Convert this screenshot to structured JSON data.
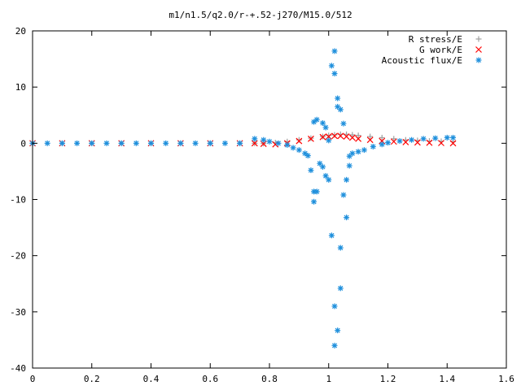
{
  "chart_data": {
    "type": "scatter",
    "title": "m1/n1.5/q2.0/r-+.52-j270/M15.0/512",
    "xlabel": "",
    "ylabel": "",
    "xlim": [
      0,
      1.6
    ],
    "ylim": [
      -40,
      20
    ],
    "x_ticks": [
      "0",
      "0.2",
      "0.4",
      "0.6",
      "0.8",
      "1",
      "1.2",
      "1.4",
      "1.6"
    ],
    "y_ticks": [
      "20",
      "10",
      "0",
      "-10",
      "-20",
      "-30",
      "-40"
    ],
    "grid": false,
    "legend_position": "top-right",
    "series": [
      {
        "name": "R stress/E",
        "marker": "plus",
        "color": "#a0a0a0",
        "points": [
          [
            0.0,
            0.0
          ],
          [
            0.1,
            0.0
          ],
          [
            0.2,
            0.0
          ],
          [
            0.3,
            0.0
          ],
          [
            0.4,
            0.0
          ],
          [
            0.5,
            0.0
          ],
          [
            0.6,
            0.0
          ],
          [
            0.7,
            0.0
          ],
          [
            0.75,
            0.0
          ],
          [
            0.78,
            -0.05
          ],
          [
            0.82,
            0.1
          ],
          [
            0.86,
            0.3
          ],
          [
            0.9,
            0.6
          ],
          [
            0.94,
            0.9
          ],
          [
            0.98,
            1.2
          ],
          [
            1.0,
            1.4
          ],
          [
            1.02,
            1.5
          ],
          [
            1.04,
            1.6
          ],
          [
            1.06,
            1.6
          ],
          [
            1.08,
            1.5
          ],
          [
            1.1,
            1.4
          ],
          [
            1.14,
            1.2
          ],
          [
            1.18,
            1.0
          ],
          [
            1.22,
            0.8
          ],
          [
            1.26,
            0.6
          ],
          [
            1.3,
            0.5
          ],
          [
            1.34,
            0.4
          ],
          [
            1.38,
            0.35
          ],
          [
            1.42,
            0.3
          ]
        ]
      },
      {
        "name": "G work/E",
        "marker": "cross",
        "color": "#ff0000",
        "points": [
          [
            0.0,
            0.0
          ],
          [
            0.1,
            0.0
          ],
          [
            0.2,
            0.0
          ],
          [
            0.3,
            0.0
          ],
          [
            0.4,
            0.0
          ],
          [
            0.5,
            0.0
          ],
          [
            0.6,
            0.0
          ],
          [
            0.7,
            0.0
          ],
          [
            0.75,
            0.0
          ],
          [
            0.78,
            -0.1
          ],
          [
            0.82,
            -0.2
          ],
          [
            0.86,
            0.0
          ],
          [
            0.9,
            0.4
          ],
          [
            0.94,
            0.8
          ],
          [
            0.98,
            1.1
          ],
          [
            1.0,
            1.2
          ],
          [
            1.02,
            1.3
          ],
          [
            1.04,
            1.3
          ],
          [
            1.06,
            1.2
          ],
          [
            1.08,
            1.0
          ],
          [
            1.1,
            0.8
          ],
          [
            1.14,
            0.6
          ],
          [
            1.18,
            0.4
          ],
          [
            1.22,
            0.3
          ],
          [
            1.26,
            0.2
          ],
          [
            1.3,
            0.15
          ],
          [
            1.34,
            0.1
          ],
          [
            1.38,
            0.05
          ],
          [
            1.42,
            0.0
          ]
        ]
      },
      {
        "name": "Acoustic flux/E",
        "marker": "star",
        "color": "#1e8fdc",
        "points": [
          [
            0.0,
            0.0
          ],
          [
            0.05,
            0.0
          ],
          [
            0.1,
            0.0
          ],
          [
            0.15,
            0.0
          ],
          [
            0.2,
            0.0
          ],
          [
            0.25,
            0.0
          ],
          [
            0.3,
            0.0
          ],
          [
            0.35,
            0.0
          ],
          [
            0.4,
            0.0
          ],
          [
            0.45,
            0.0
          ],
          [
            0.5,
            0.0
          ],
          [
            0.55,
            0.0
          ],
          [
            0.6,
            0.0
          ],
          [
            0.65,
            0.0
          ],
          [
            0.7,
            0.0
          ],
          [
            0.75,
            0.8
          ],
          [
            0.78,
            0.6
          ],
          [
            0.8,
            0.3
          ],
          [
            0.83,
            0.0
          ],
          [
            0.86,
            -0.3
          ],
          [
            0.88,
            -0.8
          ],
          [
            0.9,
            -1.2
          ],
          [
            0.92,
            -1.8
          ],
          [
            0.93,
            -2.2
          ],
          [
            0.94,
            -4.8
          ],
          [
            0.95,
            -8.6
          ],
          [
            0.95,
            -10.4
          ],
          [
            0.96,
            -8.6
          ],
          [
            0.95,
            3.8
          ],
          [
            0.96,
            4.2
          ],
          [
            0.97,
            -3.6
          ],
          [
            0.98,
            -4.2
          ],
          [
            0.98,
            3.6
          ],
          [
            0.99,
            -5.8
          ],
          [
            0.99,
            2.8
          ],
          [
            1.0,
            -6.5
          ],
          [
            1.0,
            0.5
          ],
          [
            1.01,
            13.8
          ],
          [
            1.01,
            -16.4
          ],
          [
            1.02,
            16.4
          ],
          [
            1.02,
            12.4
          ],
          [
            1.02,
            -29.0
          ],
          [
            1.02,
            -36.0
          ],
          [
            1.03,
            -33.3
          ],
          [
            1.03,
            8.0
          ],
          [
            1.03,
            6.5
          ],
          [
            1.04,
            6.0
          ],
          [
            1.04,
            -25.8
          ],
          [
            1.04,
            -18.6
          ],
          [
            1.05,
            3.5
          ],
          [
            1.05,
            -9.2
          ],
          [
            1.06,
            -13.2
          ],
          [
            1.06,
            -6.5
          ],
          [
            1.07,
            -4.0
          ],
          [
            1.07,
            -2.3
          ],
          [
            1.08,
            -1.8
          ],
          [
            1.1,
            -1.5
          ],
          [
            1.12,
            -1.2
          ],
          [
            1.15,
            -0.6
          ],
          [
            1.18,
            -0.2
          ],
          [
            1.2,
            0.1
          ],
          [
            1.24,
            0.4
          ],
          [
            1.28,
            0.6
          ],
          [
            1.32,
            0.8
          ],
          [
            1.36,
            0.9
          ],
          [
            1.4,
            1.0
          ],
          [
            1.42,
            1.0
          ]
        ]
      }
    ]
  }
}
